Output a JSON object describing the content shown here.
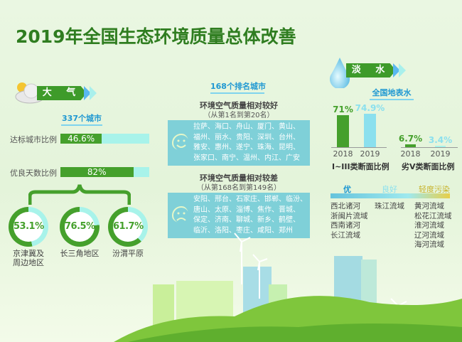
{
  "title": "2019年全国生态环境质量总体改善",
  "air": {
    "badge": "大 气",
    "icon": "cloud-sun-icon",
    "cities_label": "337个城市",
    "rows": [
      {
        "label": "达标城市比例",
        "value": "46.6%",
        "percent": 46.6
      },
      {
        "label": "优良天数比例",
        "value": "82%",
        "percent": 82
      }
    ],
    "regions": [
      {
        "value": "53.1%",
        "percent": 53.1,
        "name_lines": [
          "京津冀及",
          "周边地区"
        ]
      },
      {
        "value": "76.5%",
        "percent": 76.5,
        "name_lines": [
          "长三角地区"
        ]
      },
      {
        "value": "61.7%",
        "percent": 61.7,
        "name_lines": [
          "汾渭平原"
        ]
      }
    ]
  },
  "ranking": {
    "heading": "168个排名城市",
    "good": {
      "title": "环境空气质量相对较好",
      "subtitle": "（从第1名到第20名）",
      "lines": [
        "拉萨、海口、舟山、厦门、黄山、",
        "福州、丽水、贵阳、深圳、台州、",
        "雅安、惠州、遂宁、珠海、昆明、",
        "张家口、南宁、温州、内江、广安"
      ]
    },
    "bad": {
      "title": "环境空气质量相对较差",
      "subtitle": "（从第168名到第149名）",
      "lines": [
        "安阳、邢台、石家庄、邯郸、临汾、",
        "唐山、太原、淄博、焦作、晋城、",
        "保定、济南、聊城、新乡、鹤壁、",
        "临沂、洛阳、枣庄、咸阳、郑州"
      ]
    }
  },
  "water": {
    "badge": "淡 水",
    "icon": "water-drop-icon",
    "subtitle": "全国地表水",
    "charts": [
      {
        "caption": "I~III类断面比例",
        "bars": [
          {
            "year": "2018",
            "value": "71%",
            "v": 71
          },
          {
            "year": "2019",
            "value": "74.9%",
            "v": 74.9
          }
        ]
      },
      {
        "caption": "劣V类断面比例",
        "bars": [
          {
            "year": "2018",
            "value": "6.7%",
            "v": 6.7
          },
          {
            "year": "2019",
            "value": "3.4%",
            "v": 3.4
          }
        ]
      }
    ],
    "legend": [
      "优",
      "良好",
      "轻度污染"
    ],
    "excellent": [
      "西北诸河",
      "浙闽片流域",
      "西南诸河",
      "长江流域"
    ],
    "good": [
      "珠江流域"
    ],
    "light": [
      "黄河流域",
      "松花江流域",
      "淮河流域",
      "辽河流域",
      "海河流域"
    ]
  },
  "colors": {
    "green": "#45a02c",
    "light_cyan": "#a8f3ea",
    "blue": "#1f98d2",
    "box": "#7fd0d8",
    "yellow": "#e7cf4a"
  }
}
